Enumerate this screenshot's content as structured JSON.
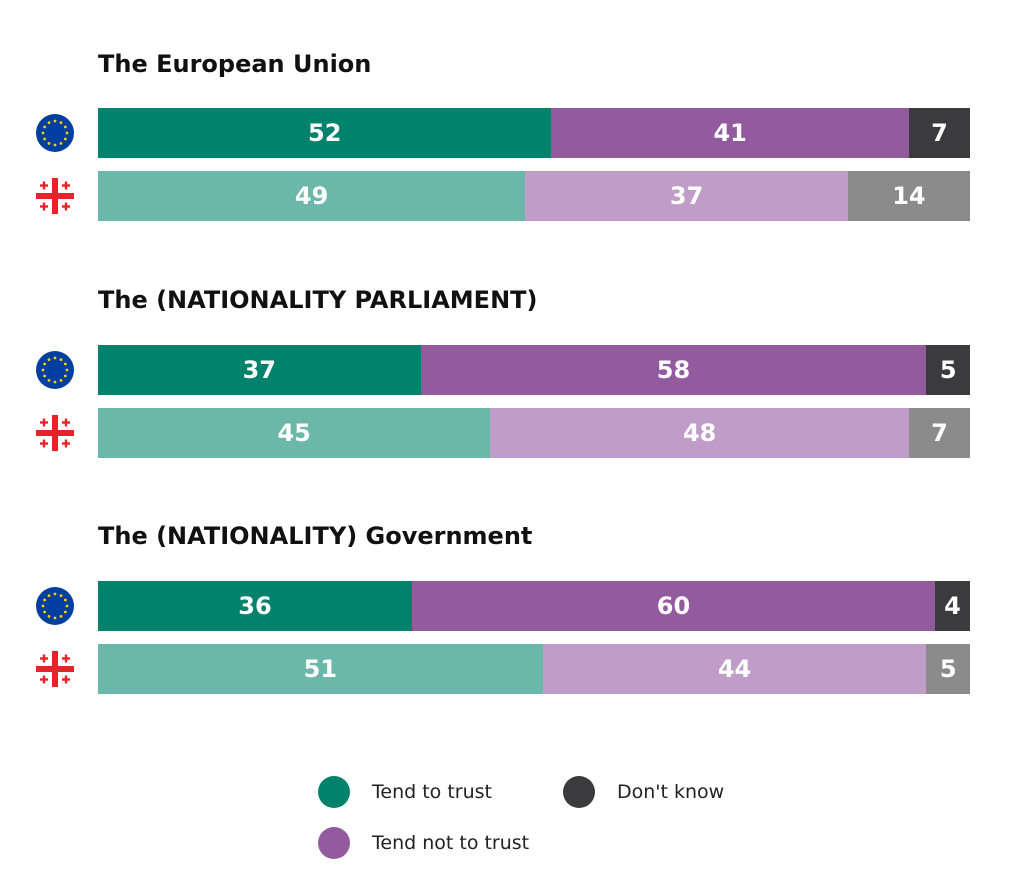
{
  "chart_data": {
    "type": "bar",
    "orientation": "horizontal",
    "stacked": true,
    "unit": "%",
    "legend": [
      {
        "key": "trust",
        "label": "Tend to trust"
      },
      {
        "key": "dk",
        "label": "Don't know"
      },
      {
        "key": "not_trust",
        "label": "Tend not to trust"
      }
    ],
    "groups": [
      {
        "title": "The European Union",
        "rows": [
          {
            "flag": "eu-flag",
            "values": {
              "trust": 52,
              "not_trust": 41,
              "dk": 7
            }
          },
          {
            "flag": "georgia-flag",
            "values": {
              "trust": 49,
              "not_trust": 37,
              "dk": 14
            }
          }
        ]
      },
      {
        "title": "The (NATIONALITY PARLIAMENT)",
        "rows": [
          {
            "flag": "eu-flag",
            "values": {
              "trust": 37,
              "not_trust": 58,
              "dk": 5
            }
          },
          {
            "flag": "georgia-flag",
            "values": {
              "trust": 45,
              "not_trust": 48,
              "dk": 7
            }
          }
        ]
      },
      {
        "title": "The (NATIONALITY) Government",
        "rows": [
          {
            "flag": "eu-flag",
            "values": {
              "trust": 36,
              "not_trust": 60,
              "dk": 4
            }
          },
          {
            "flag": "georgia-flag",
            "values": {
              "trust": 51,
              "not_trust": 44,
              "dk": 5
            }
          }
        ]
      }
    ]
  },
  "colors": {
    "eu_row": {
      "trust": "#00826c",
      "not_trust": "#915b9e",
      "dk": "#3b3a3c"
    },
    "country_row": {
      "trust": "#6bb7a9",
      "not_trust": "#c09dc8",
      "dk": "#8c8b8c"
    },
    "eu_flag_blue": "#003fa0",
    "eu_flag_star": "#ffd100",
    "georgia_red": "#e8222b"
  }
}
